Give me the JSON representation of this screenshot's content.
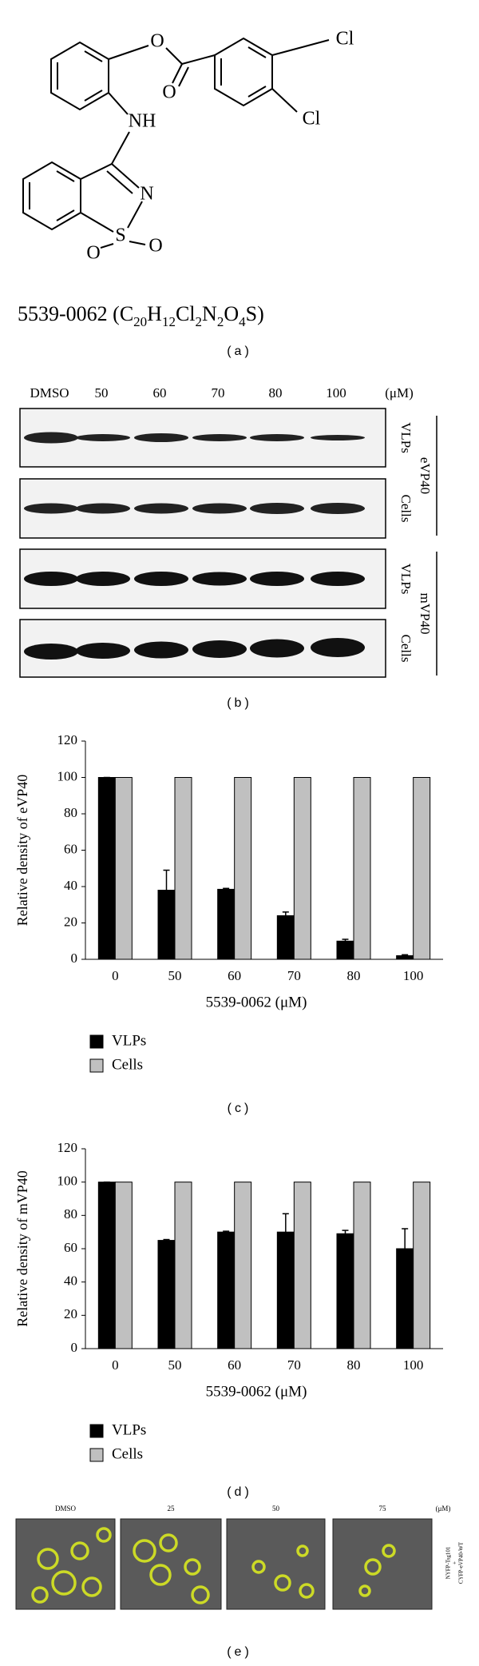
{
  "panel_a": {
    "atoms": [
      "O",
      "Cl",
      "NH",
      "O",
      "Cl",
      "N",
      "S",
      "O",
      "O"
    ],
    "compound_id": "5539-0062 (",
    "formula": [
      "C",
      "20",
      "H",
      "12",
      "Cl",
      "2",
      "N",
      "2",
      "O",
      "4",
      "S"
    ],
    "closing": ")",
    "label": "(a)"
  },
  "panel_b": {
    "columns": [
      "DMSO",
      "50",
      "60",
      "70",
      "80",
      "100"
    ],
    "unit": "(μM)",
    "rows": [
      "VLPs",
      "Cells",
      "VLPs",
      "Cells"
    ],
    "groups": [
      "eVP40",
      "mVP40"
    ],
    "label": "(b)"
  },
  "chart_data": [
    {
      "type": "bar",
      "ylabel": "Relative density of eVP40",
      "xlabel": "5539-0062 (μM)",
      "categories": [
        "0",
        "50",
        "60",
        "70",
        "80",
        "100"
      ],
      "ylim": [
        0,
        120
      ],
      "yticks": [
        0,
        20,
        40,
        60,
        80,
        100,
        120
      ],
      "legend": "below",
      "series": [
        {
          "name": "VLPs",
          "color": "#000000",
          "values": [
            100,
            38,
            38.5,
            24,
            10,
            2
          ],
          "errors": [
            0,
            11,
            0.5,
            2,
            1,
            0.5
          ]
        },
        {
          "name": "Cells",
          "color": "#c0c0c0",
          "values": [
            100,
            100,
            100,
            100,
            100,
            100
          ]
        }
      ],
      "panel_label": "(c)"
    },
    {
      "type": "bar",
      "ylabel": "Relative density of mVP40",
      "xlabel": "5539-0062 (μM)",
      "categories": [
        "0",
        "50",
        "60",
        "70",
        "80",
        "100"
      ],
      "ylim": [
        0,
        120
      ],
      "yticks": [
        0,
        20,
        40,
        60,
        80,
        100,
        120
      ],
      "legend": "below",
      "series": [
        {
          "name": "VLPs",
          "color": "#000000",
          "values": [
            100,
            65,
            70,
            70,
            69,
            60
          ],
          "errors": [
            0,
            0.5,
            0.5,
            11,
            2,
            12
          ]
        },
        {
          "name": "Cells",
          "color": "#c0c0c0",
          "values": [
            100,
            100,
            100,
            100,
            100,
            100
          ]
        }
      ],
      "panel_label": "(d)"
    }
  ],
  "panel_e": {
    "columns": [
      "DMSO",
      "25",
      "50",
      "75"
    ],
    "unit": "(μM)",
    "side_label": [
      "NYFP-Tsg101",
      "+",
      "CYFP-eVP40-WT"
    ],
    "label": "(e)"
  }
}
